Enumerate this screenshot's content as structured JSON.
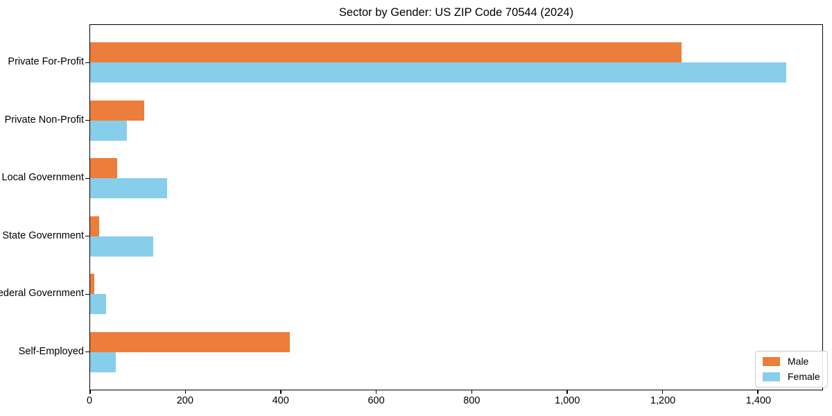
{
  "chart_data": {
    "type": "bar",
    "orientation": "horizontal",
    "title": "Sector by Gender: US ZIP Code 70544 (2024)",
    "categories": [
      "Private For-Profit",
      "Private Non-Profit",
      "Local Government",
      "State Government",
      "Federal Government",
      "Self-Employed"
    ],
    "series": [
      {
        "name": "Male",
        "color": "#ec7d3b",
        "values": [
          1240,
          113,
          57,
          19,
          9,
          419
        ]
      },
      {
        "name": "Female",
        "color": "#87ceeb",
        "values": [
          1460,
          77,
          162,
          133,
          33,
          54
        ]
      }
    ],
    "xlabel": "",
    "ylabel": "",
    "xlim": [
      0,
      1535
    ],
    "xticks": [
      0,
      200,
      400,
      600,
      800,
      1000,
      1200,
      1400
    ],
    "xtick_labels": [
      "0",
      "200",
      "400",
      "600",
      "800",
      "1,000",
      "1,200",
      "1,400"
    ],
    "grid": false,
    "legend_position": "lower right",
    "background_color": "#ffffff",
    "spine_color": "#000000"
  }
}
